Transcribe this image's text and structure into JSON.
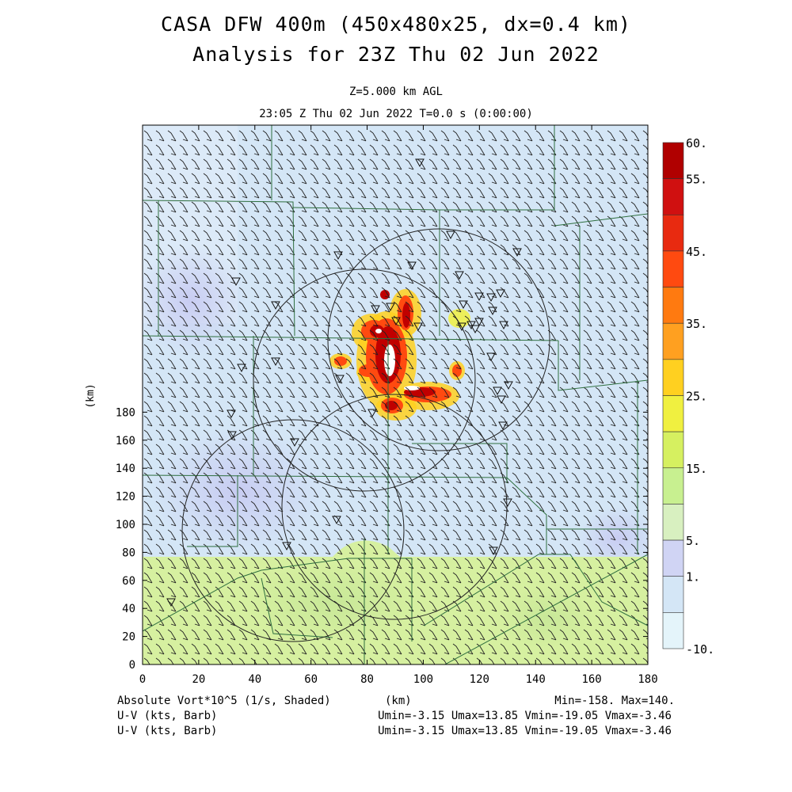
{
  "title_line1": "CASA DFW 400m (450x480x25, dx=0.4 km)",
  "title_line2": "Analysis for 23Z Thu 02 Jun 2022",
  "level_label": "Z=5.000 km AGL",
  "time_label": "23:05 Z Thu 02 Jun 2022   T=0.0 s (0:00:00)",
  "x_axis": {
    "label": "(km)",
    "ticks": [
      "0",
      "20",
      "40",
      "60",
      "80",
      "100",
      "120",
      "140",
      "160",
      "180"
    ]
  },
  "y_axis": {
    "label": "(km)",
    "ticks": [
      "0",
      "20",
      "40",
      "60",
      "80",
      "100",
      "120",
      "140",
      "160",
      "180"
    ]
  },
  "colorbar": {
    "labels": [
      "60.",
      "55.",
      "45.",
      "35.",
      "25.",
      "15.",
      "5.",
      "1.",
      "-10."
    ],
    "colors": [
      "#b00000",
      "#d01010",
      "#e82a10",
      "#ff4a10",
      "#ff7a10",
      "#ffa020",
      "#ffd020",
      "#f0f040",
      "#d6f060",
      "#c8f090",
      "#d8f0c0",
      "#d0d4f4",
      "#d4e6f6",
      "#e4f4fa"
    ]
  },
  "footer": {
    "field_label": "Absolute Vort*10^5 (1/s, Shaded)",
    "km_label": "(km)",
    "minmax": "Min=-158. Max=140.",
    "uv_label_1": "U-V (kts, Barb)",
    "uv_label_2": "U-V (kts, Barb)",
    "uv_stats_1": "Umin=-3.15 Umax=13.85 Vmin=-19.05 Vmax=-3.46",
    "uv_stats_2": "Umin=-3.15 Umax=13.85 Vmin=-19.05 Vmax=-3.46"
  },
  "colors": {
    "background_field": "#d4e6f6",
    "lower_field": "#d6f0a0",
    "county_lines": "#2e6e3e",
    "range_rings": "#222222"
  }
}
